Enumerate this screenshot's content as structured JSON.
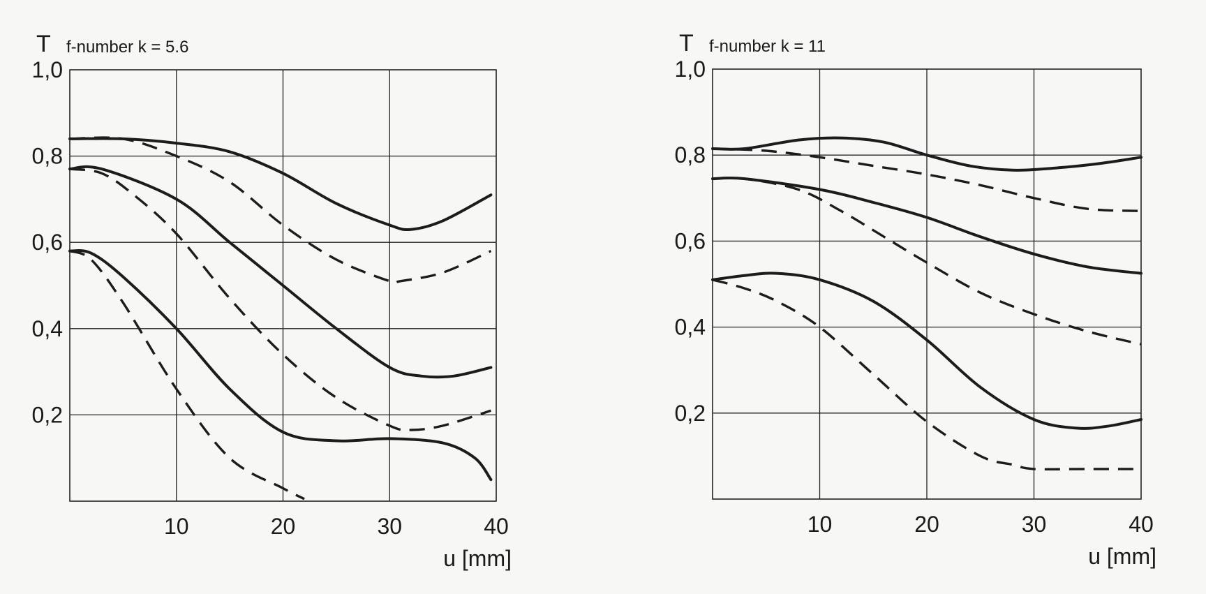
{
  "chart_data": [
    {
      "type": "line",
      "title": "",
      "ylabel": "T",
      "annotation": "f-number k = 5.6",
      "xlabel": "u  [mm]",
      "xlim": [
        0,
        40
      ],
      "ylim": [
        0,
        1.0
      ],
      "x_ticks": [
        "10",
        "20",
        "30",
        "40"
      ],
      "y_ticks": [
        "0,2",
        "0,4",
        "0,6",
        "0,8",
        "1,0"
      ],
      "grid": true,
      "series": [
        {
          "style": "solid",
          "x": [
            0,
            5,
            10,
            15,
            20,
            25,
            30,
            32,
            35,
            39.5
          ],
          "y": [
            0.84,
            0.84,
            0.83,
            0.81,
            0.76,
            0.69,
            0.64,
            0.63,
            0.65,
            0.71
          ]
        },
        {
          "style": "dashed",
          "x": [
            0,
            5,
            10,
            15,
            20,
            25,
            30,
            31,
            35,
            39.5
          ],
          "y": [
            0.84,
            0.84,
            0.8,
            0.74,
            0.64,
            0.56,
            0.51,
            0.51,
            0.53,
            0.58
          ]
        },
        {
          "style": "solid",
          "x": [
            0,
            3,
            10,
            15,
            20,
            25,
            30,
            33,
            36,
            39.5
          ],
          "y": [
            0.77,
            0.77,
            0.7,
            0.6,
            0.5,
            0.4,
            0.31,
            0.29,
            0.29,
            0.31
          ]
        },
        {
          "style": "dashed",
          "x": [
            0,
            3,
            6,
            10,
            15,
            20,
            25,
            30,
            32,
            35,
            39.5
          ],
          "y": [
            0.77,
            0.76,
            0.71,
            0.62,
            0.47,
            0.34,
            0.24,
            0.175,
            0.165,
            0.175,
            0.21
          ]
        },
        {
          "style": "solid",
          "x": [
            0,
            2,
            5,
            10,
            15,
            20,
            25,
            30,
            35,
            38,
            39.5
          ],
          "y": [
            0.58,
            0.575,
            0.52,
            0.4,
            0.26,
            0.16,
            0.14,
            0.145,
            0.135,
            0.1,
            0.05
          ]
        },
        {
          "style": "dashed",
          "x": [
            0,
            2,
            5,
            10,
            15,
            20,
            22
          ],
          "y": [
            0.58,
            0.56,
            0.46,
            0.26,
            0.1,
            0.03,
            0.005
          ]
        }
      ]
    },
    {
      "type": "line",
      "title": "",
      "ylabel": "T",
      "annotation": "f-number k = 11",
      "xlabel": "u  [mm]",
      "xlim": [
        0,
        40
      ],
      "ylim": [
        0,
        1.0
      ],
      "x_ticks": [
        "10",
        "20",
        "30",
        "40"
      ],
      "y_ticks": [
        "0,2",
        "0,4",
        "0,6",
        "0,8",
        "1,0"
      ],
      "grid": true,
      "series": [
        {
          "style": "solid",
          "x": [
            0,
            3,
            8,
            12,
            16,
            20,
            24,
            28,
            32,
            36,
            40
          ],
          "y": [
            0.815,
            0.815,
            0.835,
            0.84,
            0.83,
            0.8,
            0.775,
            0.765,
            0.77,
            0.78,
            0.795
          ]
        },
        {
          "style": "dashed",
          "x": [
            0,
            5,
            10,
            15,
            20,
            25,
            30,
            35,
            40
          ],
          "y": [
            0.815,
            0.81,
            0.795,
            0.775,
            0.755,
            0.73,
            0.7,
            0.675,
            0.67
          ]
        },
        {
          "style": "solid",
          "x": [
            0,
            3,
            10,
            15,
            20,
            25,
            30,
            35,
            40
          ],
          "y": [
            0.745,
            0.745,
            0.72,
            0.69,
            0.655,
            0.61,
            0.57,
            0.54,
            0.525
          ]
        },
        {
          "style": "dashed",
          "x": [
            0,
            3,
            8,
            12,
            16,
            20,
            25,
            30,
            35,
            40
          ],
          "y": [
            0.745,
            0.745,
            0.72,
            0.67,
            0.61,
            0.55,
            0.48,
            0.43,
            0.39,
            0.36
          ]
        },
        {
          "style": "solid",
          "x": [
            0,
            3,
            6,
            10,
            15,
            20,
            25,
            30,
            34,
            37,
            40
          ],
          "y": [
            0.51,
            0.52,
            0.525,
            0.51,
            0.46,
            0.37,
            0.26,
            0.185,
            0.165,
            0.17,
            0.185
          ]
        },
        {
          "style": "dashed",
          "x": [
            0,
            3,
            6,
            10,
            15,
            20,
            25,
            28,
            30,
            35,
            40
          ],
          "y": [
            0.51,
            0.49,
            0.46,
            0.4,
            0.29,
            0.18,
            0.1,
            0.08,
            0.07,
            0.07,
            0.07
          ]
        }
      ]
    }
  ]
}
